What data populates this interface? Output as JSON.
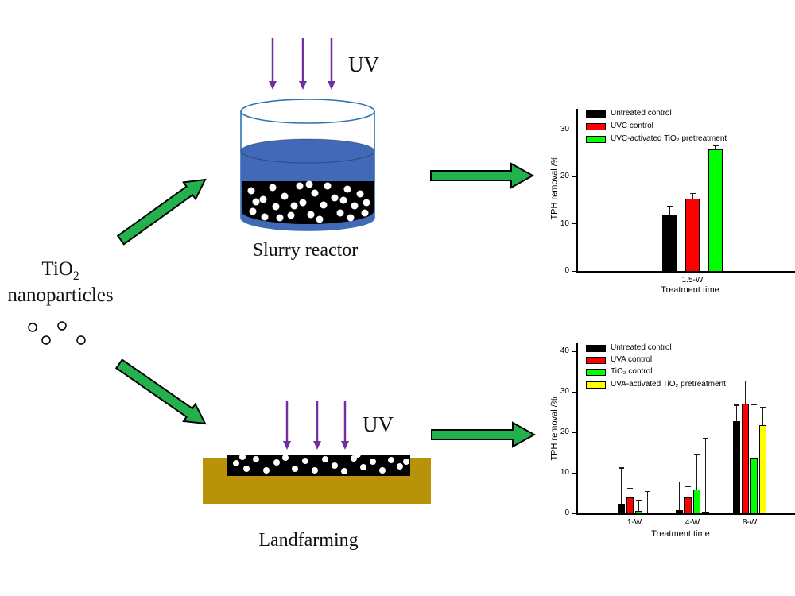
{
  "figure": {
    "np_title": {
      "formula_base": "TiO",
      "formula_sub": "2",
      "word": "nanoparticles"
    },
    "uv_label_slurry": "UV",
    "uv_label_landfarm": "UV",
    "slurry_caption": "Slurry reactor",
    "landfarm_caption": "Landfarming"
  },
  "colors": {
    "arrow_green": "#22B14C",
    "uv_purple": "#7030A0",
    "beaker_outline": "#2E75B6",
    "liquid_blue": "#4169B8",
    "soil_brown": "#B8930A",
    "slurry_black": "#000000",
    "particle_white": "#FFFFFF"
  },
  "chart_data": [
    {
      "type": "bar",
      "title": "",
      "categories": [
        "1.5-W"
      ],
      "series": [
        {
          "name": "Untreated control",
          "color": "#000000",
          "values": [
            12.0
          ],
          "errors_up": [
            1.8
          ]
        },
        {
          "name": "UVC control",
          "color": "#FF0000",
          "values": [
            15.3
          ],
          "errors_up": [
            1.2
          ]
        },
        {
          "name": "UVC-activated TiO₂ pretreatment",
          "color": "#00FF00",
          "values": [
            25.8
          ],
          "errors_up": [
            0.8
          ]
        }
      ],
      "xlabel": "Treatment time",
      "ylabel": "TPH removal /%",
      "ylim": [
        0,
        34
      ],
      "yticks": [
        0,
        10,
        20,
        30
      ],
      "grid": false,
      "legend_position": "top-left"
    },
    {
      "type": "bar",
      "title": "",
      "categories": [
        "1-W",
        "4-W",
        "8-W"
      ],
      "series": [
        {
          "name": "Untreated control",
          "color": "#000000",
          "values": [
            2.3,
            0.8,
            22.7
          ],
          "errors_up": [
            9.0,
            7.0,
            4.1
          ]
        },
        {
          "name": "UVA control",
          "color": "#FF0000",
          "values": [
            3.9,
            3.9,
            27.0
          ],
          "errors_up": [
            2.4,
            2.8,
            5.7
          ]
        },
        {
          "name": "TiO₂ control",
          "color": "#00FF00",
          "values": [
            0.6,
            5.9,
            13.8
          ],
          "errors_up": [
            2.7,
            8.8,
            13.1
          ]
        },
        {
          "name": "UVA-activated TiO₂ pretreatment",
          "color": "#FFFF00",
          "values": [
            0.2,
            0.3,
            21.8
          ],
          "errors_up": [
            5.3,
            18.3,
            4.5
          ]
        }
      ],
      "xlabel": "Treatment time",
      "ylabel": "TPH removal /%",
      "ylim": [
        0,
        42
      ],
      "yticks": [
        0,
        10,
        20,
        30,
        40
      ],
      "grid": false,
      "legend_position": "top-left"
    }
  ]
}
